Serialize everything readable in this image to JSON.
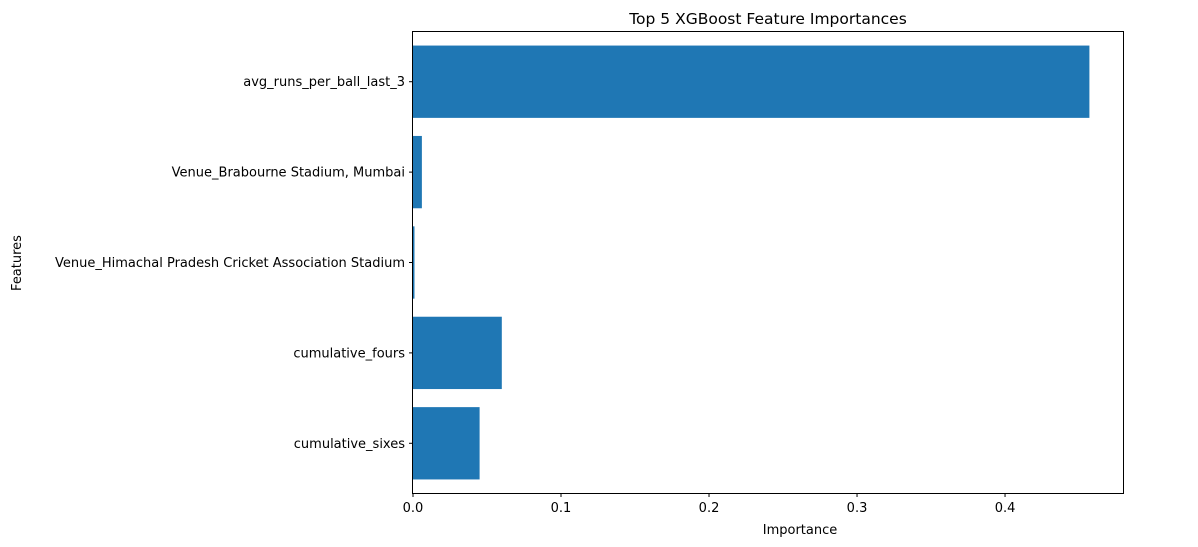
{
  "chart_data": {
    "type": "bar",
    "orientation": "horizontal",
    "title": "Top 5 XGBoost Feature Importances",
    "xlabel": "Importance",
    "ylabel": "Features",
    "categories": [
      "avg_runs_per_ball_last_3",
      "Venue_Brabourne Stadium, Mumbai",
      "Venue_Himachal Pradesh Cricket Association Stadium",
      "cumulative_fours",
      "cumulative_sixes"
    ],
    "values": [
      0.457,
      0.006,
      0.001,
      0.06,
      0.045
    ],
    "xlim": [
      0,
      0.4797
    ],
    "xticks": [
      0.0,
      0.1,
      0.2,
      0.3,
      0.4
    ],
    "xtick_labels": [
      "0.0",
      "0.1",
      "0.2",
      "0.3",
      "0.4"
    ],
    "bar_color": "#1f77b4",
    "grid": false,
    "legend": false
  }
}
